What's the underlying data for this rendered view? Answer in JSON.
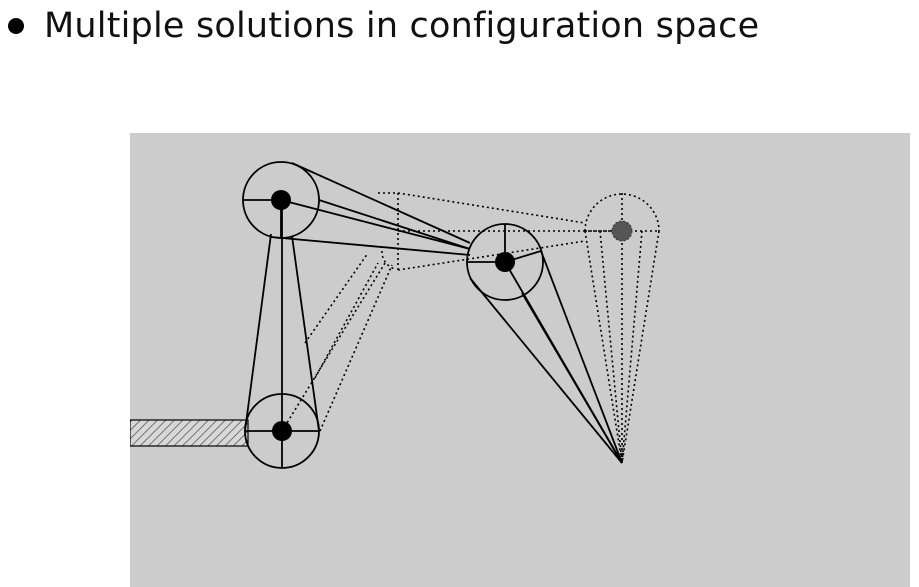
{
  "slide": {
    "bullet": "Multiple solutions in configuration space"
  },
  "figure": {
    "background_color": "#cccccc",
    "solid_linkage_color": "#000000",
    "alternate_linkage_style": "dotted",
    "target_joint_color": "#555555",
    "base_style": "hatched"
  }
}
